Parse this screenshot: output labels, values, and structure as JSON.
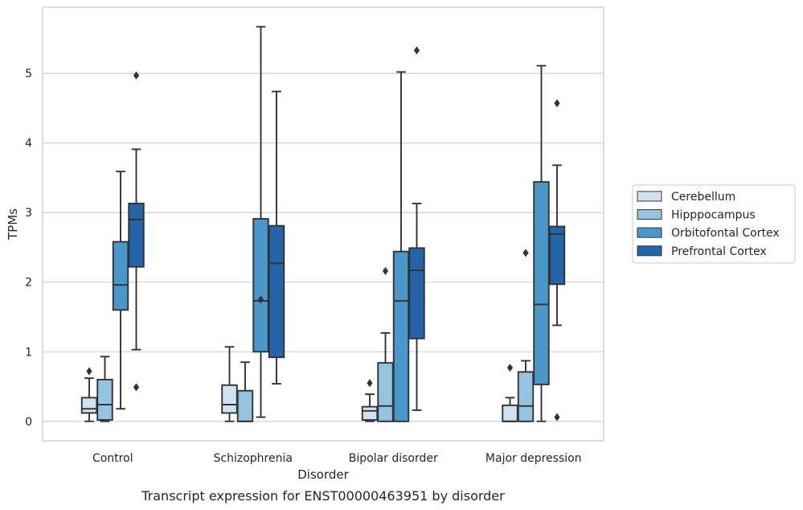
{
  "chart_data": {
    "type": "box",
    "title": "",
    "caption": "Transcript expression for ENST00000463951 by disorder",
    "xlabel": "Disorder",
    "ylabel": "TPMs",
    "categories": [
      "Control",
      "Schizophrenia",
      "Bipolar disorder",
      "Major depression"
    ],
    "ylim": [
      -0.28,
      5.95
    ],
    "yticks": [
      0,
      1,
      2,
      3,
      4,
      5
    ],
    "grid": "horizontal",
    "legend_position": "right",
    "series": [
      {
        "name": "Cerebellum",
        "color": "#d0e1f2",
        "boxes": [
          {
            "whislo": 0.0,
            "q1": 0.12,
            "med": 0.18,
            "q3": 0.34,
            "whishi": 0.62,
            "fliers": [
              0.72
            ]
          },
          {
            "whislo": 0.0,
            "q1": 0.12,
            "med": 0.24,
            "q3": 0.52,
            "whishi": 1.07,
            "fliers": []
          },
          {
            "whislo": 0.0,
            "q1": 0.02,
            "med": 0.15,
            "q3": 0.21,
            "whishi": 0.39,
            "fliers": [
              0.55
            ]
          },
          {
            "whislo": 0.0,
            "q1": 0.0,
            "med": 0.0,
            "q3": 0.23,
            "whishi": 0.34,
            "fliers": [
              0.77
            ]
          }
        ]
      },
      {
        "name": "Hipppocampus",
        "color": "#94c4df",
        "boxes": [
          {
            "whislo": 0.0,
            "q1": 0.02,
            "med": 0.24,
            "q3": 0.6,
            "whishi": 0.93,
            "fliers": []
          },
          {
            "whislo": 0.0,
            "q1": 0.0,
            "med": 0.0,
            "q3": 0.44,
            "whishi": 0.85,
            "fliers": []
          },
          {
            "whislo": 0.0,
            "q1": 0.0,
            "med": 0.22,
            "q3": 0.84,
            "whishi": 1.27,
            "fliers": [
              2.16
            ]
          },
          {
            "whislo": 0.0,
            "q1": 0.0,
            "med": 0.22,
            "q3": 0.71,
            "whishi": 0.87,
            "fliers": [
              2.42
            ]
          }
        ]
      },
      {
        "name": "Orbitofontal Cortex",
        "color": "#4a98c9",
        "boxes": [
          {
            "whislo": 0.18,
            "q1": 1.6,
            "med": 1.96,
            "q3": 2.58,
            "whishi": 3.59,
            "fliers": []
          },
          {
            "whislo": 0.06,
            "q1": 1.0,
            "med": 1.73,
            "q3": 2.91,
            "whishi": 5.67,
            "fliers": [
              1.75
            ]
          },
          {
            "whislo": 0.0,
            "q1": 0.0,
            "med": 1.73,
            "q3": 2.44,
            "whishi": 5.02,
            "fliers": []
          },
          {
            "whislo": 0.0,
            "q1": 0.53,
            "med": 1.68,
            "q3": 3.44,
            "whishi": 5.11,
            "fliers": []
          }
        ]
      },
      {
        "name": "Prefrontal Cortex",
        "color": "#2464a8",
        "boxes": [
          {
            "whislo": 1.03,
            "q1": 2.22,
            "med": 2.9,
            "q3": 3.13,
            "whishi": 3.91,
            "fliers": [
              4.97,
              0.49
            ]
          },
          {
            "whislo": 0.54,
            "q1": 0.92,
            "med": 2.27,
            "q3": 2.81,
            "whishi": 4.74,
            "fliers": []
          },
          {
            "whislo": 0.16,
            "q1": 1.19,
            "med": 2.17,
            "q3": 2.49,
            "whishi": 3.13,
            "fliers": [
              5.33
            ]
          },
          {
            "whislo": 1.38,
            "q1": 1.97,
            "med": 2.69,
            "q3": 2.8,
            "whishi": 3.68,
            "fliers": [
              4.57,
              0.06
            ]
          }
        ]
      }
    ]
  }
}
